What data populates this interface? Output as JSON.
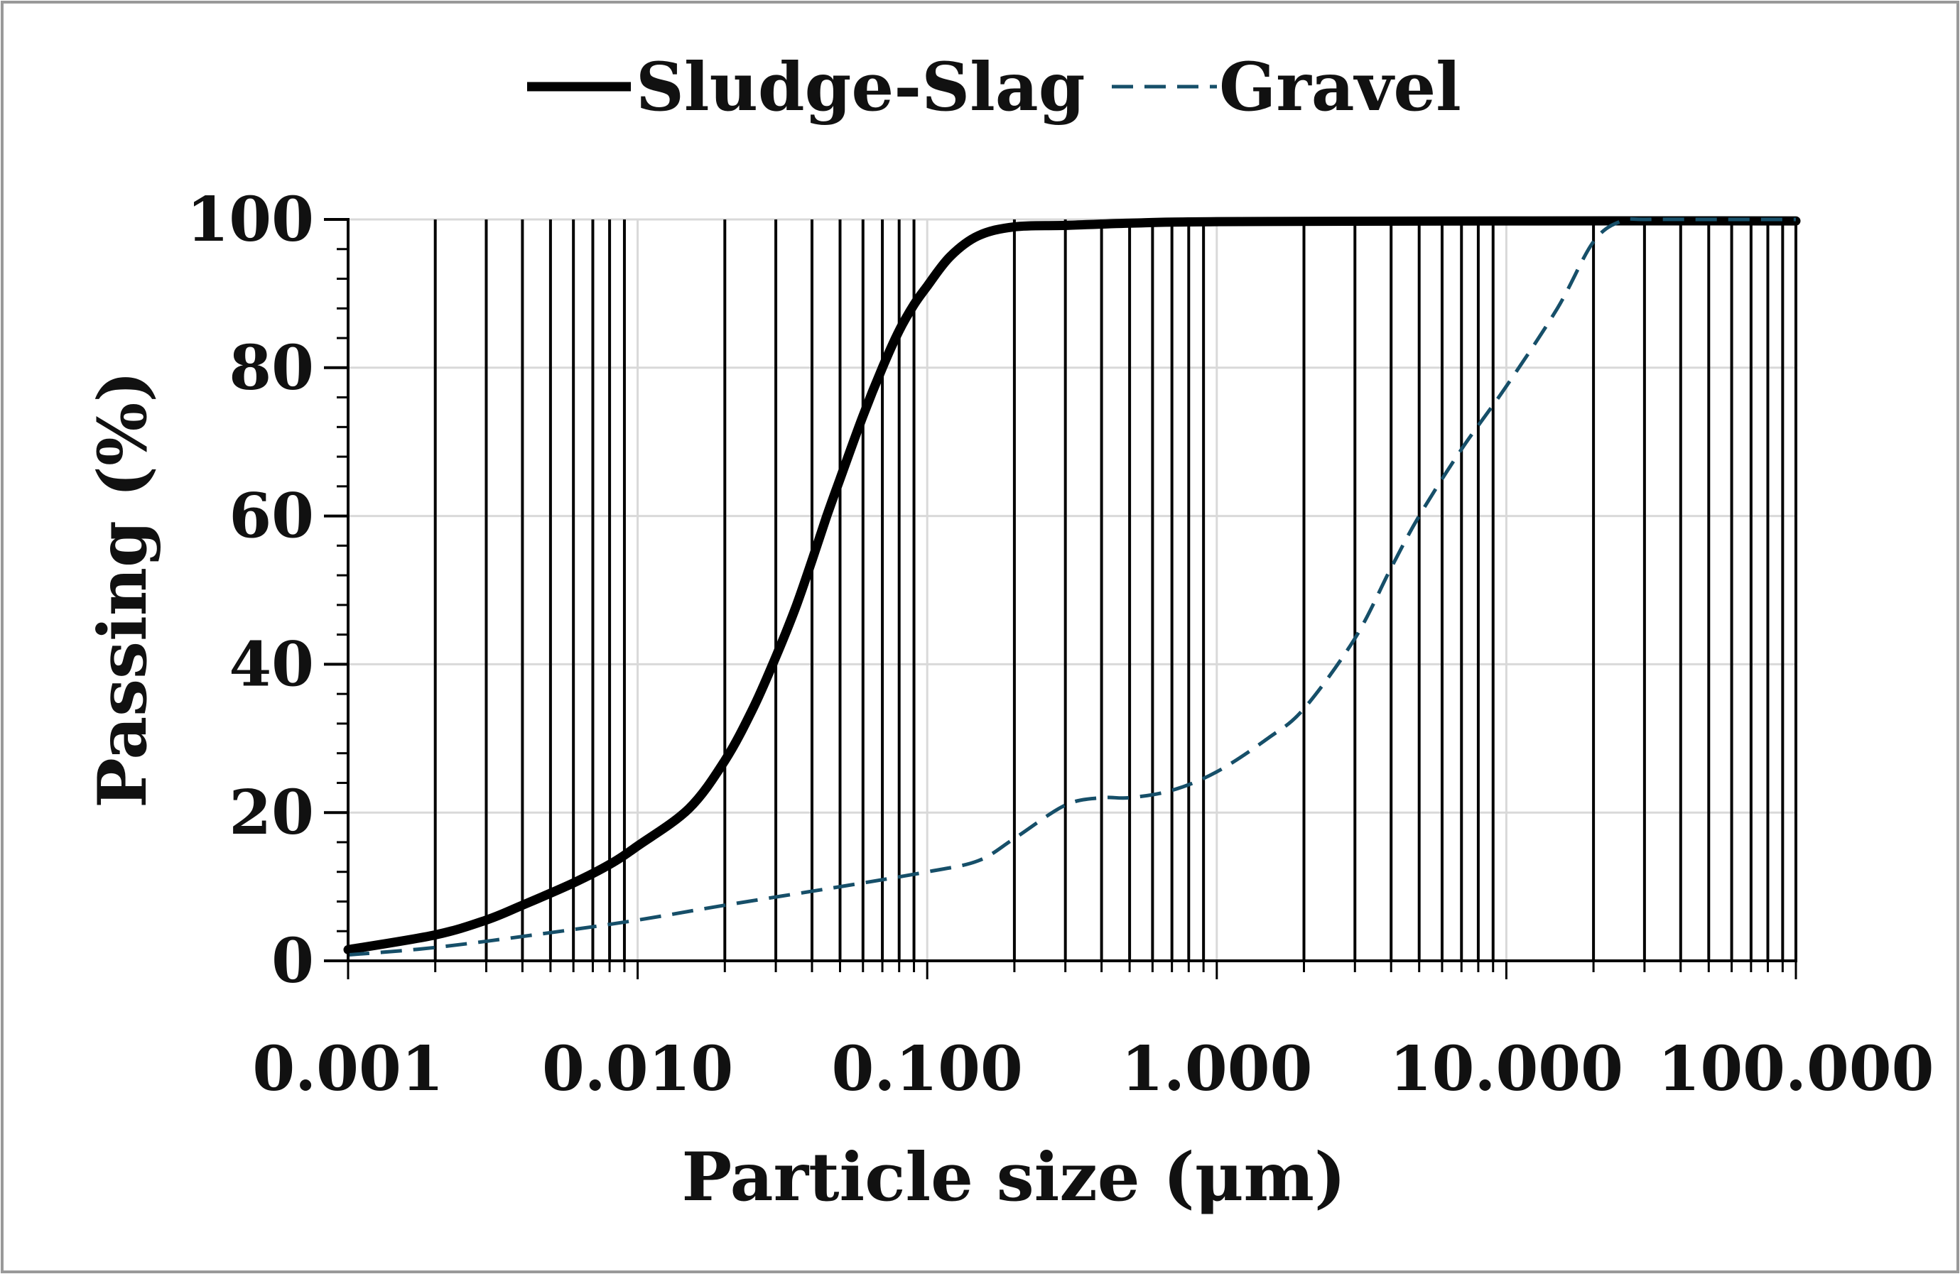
{
  "colors": {
    "sludge_slag": "#000000",
    "gravel": "#164f69",
    "grid": "#d9d9d9",
    "vertical_lines": "#000000",
    "frame": "#999999"
  },
  "chart_data": {
    "type": "line",
    "title": "",
    "xlabel": "Particle size (μm)",
    "ylabel": "Passing (%)",
    "xscale": "log",
    "xlim": [
      0.001,
      100
    ],
    "ylim": [
      0,
      100
    ],
    "x_tick_values": [
      0.001,
      0.01,
      0.1,
      1,
      10,
      100
    ],
    "x_tick_labels": [
      "0.001",
      "0.010",
      "0.100",
      "1.000",
      "10.000",
      "100.000"
    ],
    "y_ticks": [
      0,
      20,
      40,
      60,
      80,
      100
    ],
    "y_tick_labels": [
      "0",
      "20",
      "40",
      "60",
      "80",
      "100"
    ],
    "horizontal_grid": true,
    "log_vertical_lines": true,
    "legend_position": "top-center",
    "series": [
      {
        "name": "Sludge-Slag",
        "style": "solid-thick",
        "color": "#000000",
        "x": [
          0.001,
          0.002,
          0.003,
          0.004,
          0.006,
          0.008,
          0.01,
          0.015,
          0.02,
          0.025,
          0.03,
          0.035,
          0.04,
          0.045,
          0.05,
          0.06,
          0.07,
          0.08,
          0.09,
          0.1,
          0.12,
          0.15,
          0.2,
          0.3,
          0.5,
          1,
          10,
          100
        ],
        "y": [
          1.5,
          3.5,
          5.5,
          7.5,
          10.5,
          13.0,
          15.5,
          20.5,
          27.0,
          34.0,
          41.0,
          47.5,
          54.0,
          60.0,
          65.0,
          73.5,
          80.0,
          85.0,
          88.5,
          91.0,
          95.0,
          97.8,
          99.0,
          99.2,
          99.5,
          99.7,
          99.8,
          99.8
        ]
      },
      {
        "name": "Gravel",
        "style": "dashed",
        "color": "#164f69",
        "x": [
          0.001,
          0.002,
          0.005,
          0.01,
          0.02,
          0.05,
          0.1,
          0.15,
          0.2,
          0.3,
          0.4,
          0.5,
          0.7,
          1,
          1.5,
          2,
          3,
          4,
          5,
          7,
          10,
          15,
          20,
          25,
          30,
          50,
          100
        ],
        "y": [
          0.8,
          1.8,
          3.8,
          5.5,
          7.5,
          10.0,
          12.0,
          13.5,
          16.5,
          21.0,
          22.0,
          22.0,
          23.0,
          25.5,
          30.0,
          34.0,
          43.5,
          53.0,
          60.0,
          69.0,
          77.5,
          88.0,
          97.0,
          99.8,
          100.0,
          100.0,
          100.0
        ]
      }
    ]
  }
}
